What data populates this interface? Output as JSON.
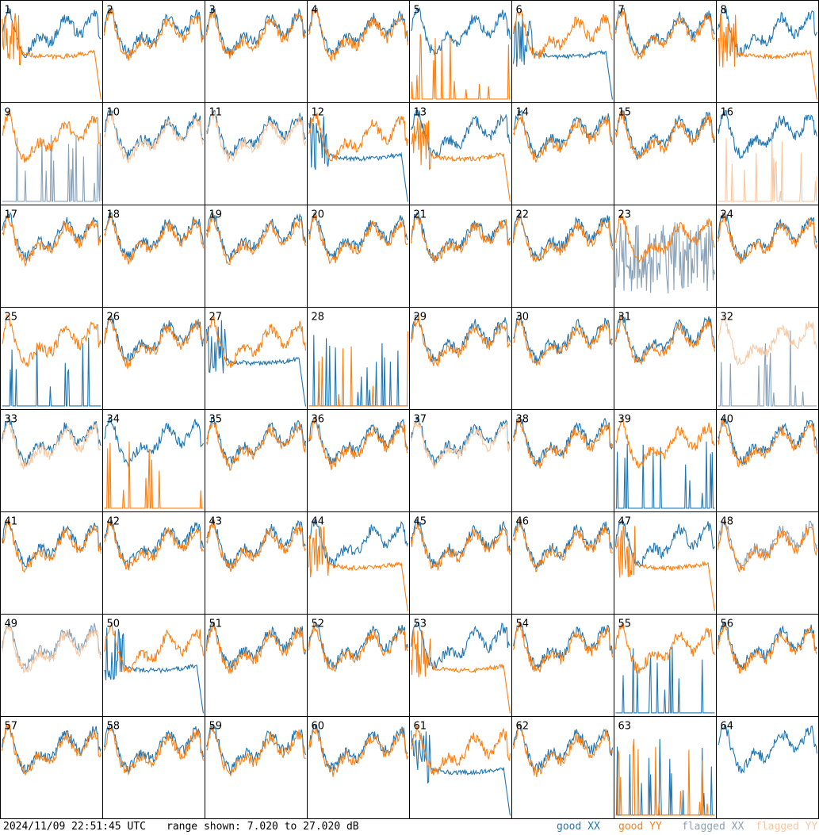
{
  "footer": {
    "timestamp": "2024/11/09 22:51:45 UTC",
    "range_text": "range shown: 7.020 to 27.020 dB"
  },
  "legend": {
    "good_xx": "good XX",
    "good_yy": "good YY",
    "flagged_xx": "flagged XX",
    "flagged_yy": "flagged YY"
  },
  "colors": {
    "good_xx": "#1f77b4",
    "good_yy": "#ff7f0e",
    "flagged_xx": "#8aa2b8",
    "flagged_yy": "#f9c79f",
    "border": "#000000"
  },
  "chart_data": {
    "type": "line",
    "grid": "8x8 small multiples of bandpass spectra, no axes or tick labels",
    "ylim_db": [
      7.02,
      27.02
    ],
    "panels": [
      {
        "id": "1",
        "xx": "good",
        "yy": "good",
        "yy_shape": "drop"
      },
      {
        "id": "2",
        "xx": "good",
        "yy": "good"
      },
      {
        "id": "3",
        "xx": "good",
        "yy": "good"
      },
      {
        "id": "4",
        "xx": "good",
        "yy": "good"
      },
      {
        "id": "5",
        "xx": "good",
        "yy": "good",
        "yy_shape": "spiky-floor"
      },
      {
        "id": "6",
        "xx": "good",
        "yy": "good",
        "xx_shape": "drop"
      },
      {
        "id": "7",
        "xx": "good",
        "yy": "good"
      },
      {
        "id": "8",
        "xx": "good",
        "yy": "good",
        "yy_shape": "drop"
      },
      {
        "id": "9",
        "xx": "flagged",
        "yy": "good",
        "xx_shape": "spiky-floor"
      },
      {
        "id": "10",
        "xx": "good",
        "yy": "flagged"
      },
      {
        "id": "11",
        "xx": "good",
        "yy": "flagged"
      },
      {
        "id": "12",
        "xx": "good",
        "yy": "good",
        "xx_shape": "drop"
      },
      {
        "id": "13",
        "xx": "good",
        "yy": "good",
        "yy_shape": "drop"
      },
      {
        "id": "14",
        "xx": "good",
        "yy": "good"
      },
      {
        "id": "15",
        "xx": "good",
        "yy": "good"
      },
      {
        "id": "16",
        "xx": "good",
        "yy": "flagged",
        "yy_shape": "spiky-floor"
      },
      {
        "id": "17",
        "xx": "good",
        "yy": "good"
      },
      {
        "id": "18",
        "xx": "good",
        "yy": "good"
      },
      {
        "id": "19",
        "xx": "good",
        "yy": "good"
      },
      {
        "id": "20",
        "xx": "good",
        "yy": "good"
      },
      {
        "id": "21",
        "xx": "good",
        "yy": "good"
      },
      {
        "id": "22",
        "xx": "good",
        "yy": "good"
      },
      {
        "id": "23",
        "xx": "flagged",
        "yy": "good",
        "xx_shape": "noisy"
      },
      {
        "id": "24",
        "xx": "good",
        "yy": "good"
      },
      {
        "id": "25",
        "xx": "good",
        "yy": "good",
        "xx_shape": "spiky-floor"
      },
      {
        "id": "26",
        "xx": "good",
        "yy": "good"
      },
      {
        "id": "27",
        "xx": "good",
        "yy": "good",
        "xx_shape": "drop"
      },
      {
        "id": "28",
        "xx": "good",
        "yy": "good",
        "xx_shape": "spiky-floor",
        "yy_shape": "spiky-floor"
      },
      {
        "id": "29",
        "xx": "good",
        "yy": "good"
      },
      {
        "id": "30",
        "xx": "good",
        "yy": "good"
      },
      {
        "id": "31",
        "xx": "good",
        "yy": "good"
      },
      {
        "id": "32",
        "xx": "flagged",
        "yy": "flagged",
        "xx_shape": "spiky-floor"
      },
      {
        "id": "33",
        "xx": "good",
        "yy": "flagged"
      },
      {
        "id": "34",
        "xx": "good",
        "yy": "good",
        "yy_shape": "spiky-floor"
      },
      {
        "id": "35",
        "xx": "good",
        "yy": "good"
      },
      {
        "id": "36",
        "xx": "good",
        "yy": "good"
      },
      {
        "id": "37",
        "xx": "good",
        "yy": "flagged"
      },
      {
        "id": "38",
        "xx": "good",
        "yy": "good"
      },
      {
        "id": "39",
        "xx": "good",
        "yy": "good",
        "xx_shape": "spiky-floor"
      },
      {
        "id": "40",
        "xx": "good",
        "yy": "good"
      },
      {
        "id": "41",
        "xx": "good",
        "yy": "good"
      },
      {
        "id": "42",
        "xx": "good",
        "yy": "good"
      },
      {
        "id": "43",
        "xx": "good",
        "yy": "good"
      },
      {
        "id": "44",
        "xx": "good",
        "yy": "good",
        "yy_shape": "drop"
      },
      {
        "id": "45",
        "xx": "good",
        "yy": "good"
      },
      {
        "id": "46",
        "xx": "good",
        "yy": "good"
      },
      {
        "id": "47",
        "xx": "good",
        "yy": "good",
        "yy_shape": "drop"
      },
      {
        "id": "48",
        "xx": "flagged",
        "yy": "good"
      },
      {
        "id": "49",
        "xx": "flagged",
        "yy": "flagged"
      },
      {
        "id": "50",
        "xx": "good",
        "yy": "good",
        "xx_shape": "drop"
      },
      {
        "id": "51",
        "xx": "good",
        "yy": "good"
      },
      {
        "id": "52",
        "xx": "good",
        "yy": "good"
      },
      {
        "id": "53",
        "xx": "good",
        "yy": "good",
        "yy_shape": "drop"
      },
      {
        "id": "54",
        "xx": "good",
        "yy": "good"
      },
      {
        "id": "55",
        "xx": "good",
        "yy": "good",
        "xx_shape": "spiky-floor"
      },
      {
        "id": "56",
        "xx": "good",
        "yy": "good"
      },
      {
        "id": "57",
        "xx": "good",
        "yy": "good"
      },
      {
        "id": "58",
        "xx": "good",
        "yy": "good"
      },
      {
        "id": "59",
        "xx": "good",
        "yy": "good"
      },
      {
        "id": "60",
        "xx": "good",
        "yy": "good"
      },
      {
        "id": "61",
        "xx": "good",
        "yy": "good",
        "xx_shape": "drop"
      },
      {
        "id": "62",
        "xx": "good",
        "yy": "good"
      },
      {
        "id": "63",
        "xx": "good",
        "yy": "good",
        "xx_shape": "spiky-floor",
        "yy_shape": "spiky-floor"
      },
      {
        "id": "64",
        "xx": "good",
        "yy": "none"
      }
    ]
  }
}
